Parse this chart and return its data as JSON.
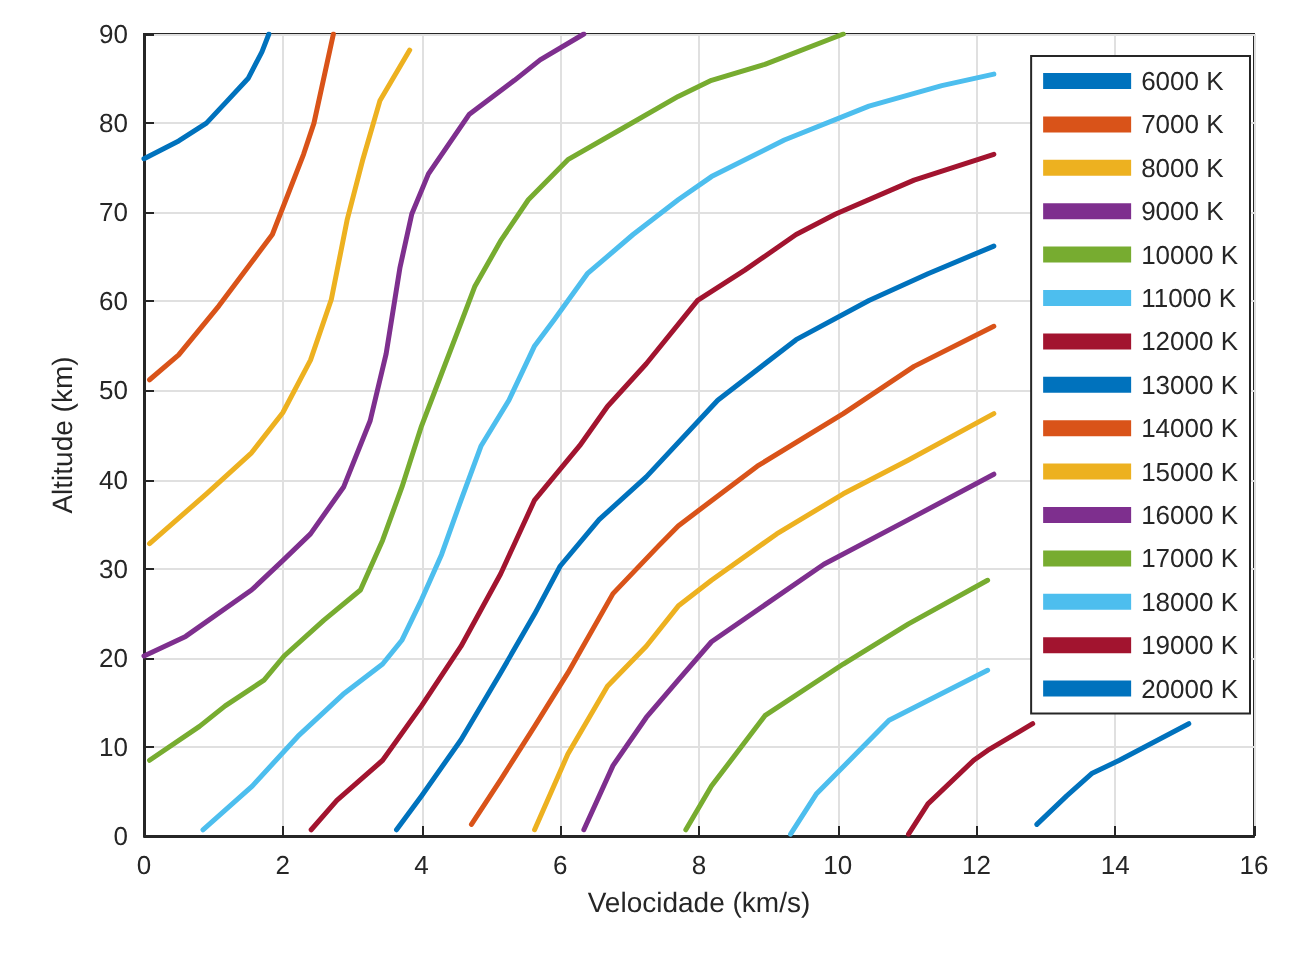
{
  "chart_data": {
    "type": "line",
    "xlabel": "Velocidade (km/s)",
    "ylabel": "Altitude (km)",
    "xlim": [
      0,
      16
    ],
    "ylim": [
      0,
      90
    ],
    "xticks": [
      0,
      2,
      4,
      6,
      8,
      10,
      12,
      14,
      16
    ],
    "yticks": [
      0,
      10,
      20,
      30,
      40,
      50,
      60,
      70,
      80,
      90
    ],
    "grid": true,
    "legend": "top right",
    "marker": "none",
    "line_style": "solid",
    "series": [
      {
        "name": "6000 K",
        "color": "#0072bd",
        "x": [
          0,
          0.5,
          0.9,
          1.2,
          1.5,
          1.7,
          1.8
        ],
        "values": [
          76,
          78,
          80,
          82.5,
          85,
          88,
          90
        ]
      },
      {
        "name": "7000 K",
        "color": "#d95319",
        "x": [
          0.08,
          0.5,
          1.08,
          1.85,
          2.3,
          2.45,
          2.73
        ],
        "values": [
          51.2,
          54,
          59.5,
          67.5,
          76.5,
          80,
          90
        ]
      },
      {
        "name": "8000 K",
        "color": "#edb120",
        "x": [
          0.08,
          0.9,
          1.55,
          2.0,
          2.4,
          2.7,
          2.93,
          3.15,
          3.4,
          3.83
        ],
        "values": [
          32.8,
          38.4,
          43,
          47.5,
          53.4,
          60.2,
          69.2,
          75.8,
          82.5,
          88.2
        ]
      },
      {
        "name": "9000 K",
        "color": "#7e2f8e",
        "x": [
          0,
          0.6,
          1.55,
          2.0,
          2.4,
          2.88,
          3.26,
          3.49,
          3.69,
          3.86,
          4.1,
          4.69,
          5.34,
          5.71,
          6.34
        ],
        "values": [
          20.2,
          22.4,
          27.6,
          30.9,
          33.9,
          39.2,
          46.6,
          54.1,
          63.8,
          69.8,
          74.3,
          81,
          84.8,
          87.1,
          90
        ]
      },
      {
        "name": "10000 K",
        "color": "#77ac30",
        "x": [
          0.08,
          0.8,
          1.17,
          1.73,
          2.02,
          2.59,
          3.12,
          3.44,
          3.72,
          4.0,
          4.29,
          4.55,
          4.77,
          5.15,
          5.54,
          6.11,
          6.85,
          7.7,
          8.18,
          8.95,
          10.08
        ],
        "values": [
          8.5,
          12.3,
          14.6,
          17.5,
          20.2,
          24.2,
          27.6,
          33.2,
          39.2,
          46,
          51.9,
          57.2,
          61.7,
          66.9,
          71.4,
          75.9,
          79.2,
          83,
          84.8,
          86.6,
          90
        ]
      },
      {
        "name": "11000 K",
        "color": "#4dbeee",
        "x": [
          0.85,
          1.56,
          2.22,
          2.87,
          3.44,
          3.72,
          4.0,
          4.29,
          4.57,
          4.86,
          5.26,
          5.63,
          5.91,
          6.39,
          7.05,
          7.7,
          8.18,
          9.23,
          10.45,
          11.5,
          12.25
        ],
        "values": [
          0.7,
          5.6,
          11.2,
          15.9,
          19.3,
          22,
          26.5,
          31.6,
          37.7,
          43.8,
          48.9,
          55,
          57.9,
          63.1,
          67.5,
          71.4,
          74,
          78.1,
          81.9,
          84.2,
          85.5
        ]
      },
      {
        "name": "12000 K",
        "color": "#a2142f",
        "x": [
          2.41,
          2.78,
          3.44,
          4.0,
          4.57,
          5.14,
          5.63,
          6.28,
          6.68,
          7.24,
          7.98,
          8.66,
          9.4,
          9.97,
          11.1,
          12.25
        ],
        "values": [
          0.7,
          4,
          8.5,
          14.6,
          21.3,
          29.4,
          37.7,
          43.8,
          48.2,
          53,
          60.1,
          63.5,
          67.5,
          69.8,
          73.6,
          76.5
        ]
      },
      {
        "name": "13000 K",
        "color": "#0072bd",
        "x": [
          3.64,
          4.0,
          4.57,
          5.14,
          5.63,
          6.0,
          6.56,
          7.24,
          8.27,
          9.4,
          10.45,
          11.3,
          12.25
        ],
        "values": [
          0.7,
          4.5,
          10.8,
          18.3,
          24.9,
          30.3,
          35.5,
          40.3,
          48.9,
          55.7,
          60.1,
          63.1,
          66.2
        ]
      },
      {
        "name": "14000 K",
        "color": "#d95319",
        "x": [
          4.72,
          5.14,
          5.63,
          6.11,
          6.76,
          7.41,
          7.7,
          8.84,
          10.08,
          11.1,
          12.25
        ],
        "values": [
          1.3,
          6.3,
          12.3,
          18.3,
          27.2,
          32.5,
          34.8,
          41.5,
          47.4,
          52.7,
          57.2
        ]
      },
      {
        "name": "15000 K",
        "color": "#edb120",
        "x": [
          5.63,
          6.11,
          6.68,
          7.24,
          7.7,
          8.18,
          9.12,
          10.08,
          11.02,
          12.25
        ],
        "values": [
          0.7,
          9.2,
          16.8,
          21.3,
          25.8,
          28.7,
          33.9,
          38.4,
          42.2,
          47.4
        ]
      },
      {
        "name": "16000 K",
        "color": "#7e2f8e",
        "x": [
          6.34,
          6.76,
          7.24,
          7.7,
          8.18,
          9.8,
          11.02,
          12.25
        ],
        "values": [
          0.7,
          7.9,
          13.3,
          17.5,
          21.8,
          30.5,
          35.5,
          40.6
        ]
      },
      {
        "name": "17000 K",
        "color": "#77ac30",
        "x": [
          7.81,
          8.18,
          8.95,
          10.08,
          11.02,
          12.16
        ],
        "values": [
          0.7,
          5.6,
          13.5,
          19.3,
          23.8,
          28.7
        ]
      },
      {
        "name": "18000 K",
        "color": "#4dbeee",
        "x": [
          9.32,
          9.69,
          10.26,
          10.74,
          12.16
        ],
        "values": [
          0.2,
          4.7,
          9.2,
          13,
          18.6
        ]
      },
      {
        "name": "19000 K",
        "color": "#a2142f",
        "x": [
          11.02,
          11.3,
          11.96,
          12.16,
          12.81
        ],
        "values": [
          0.2,
          3.6,
          8.5,
          9.6,
          12.6
        ]
      },
      {
        "name": "20000 K",
        "color": "#0072bd",
        "x": [
          12.87,
          13.3,
          13.66,
          14.06,
          15.06
        ],
        "values": [
          1.3,
          4.5,
          7,
          8.5,
          12.6
        ]
      }
    ]
  }
}
